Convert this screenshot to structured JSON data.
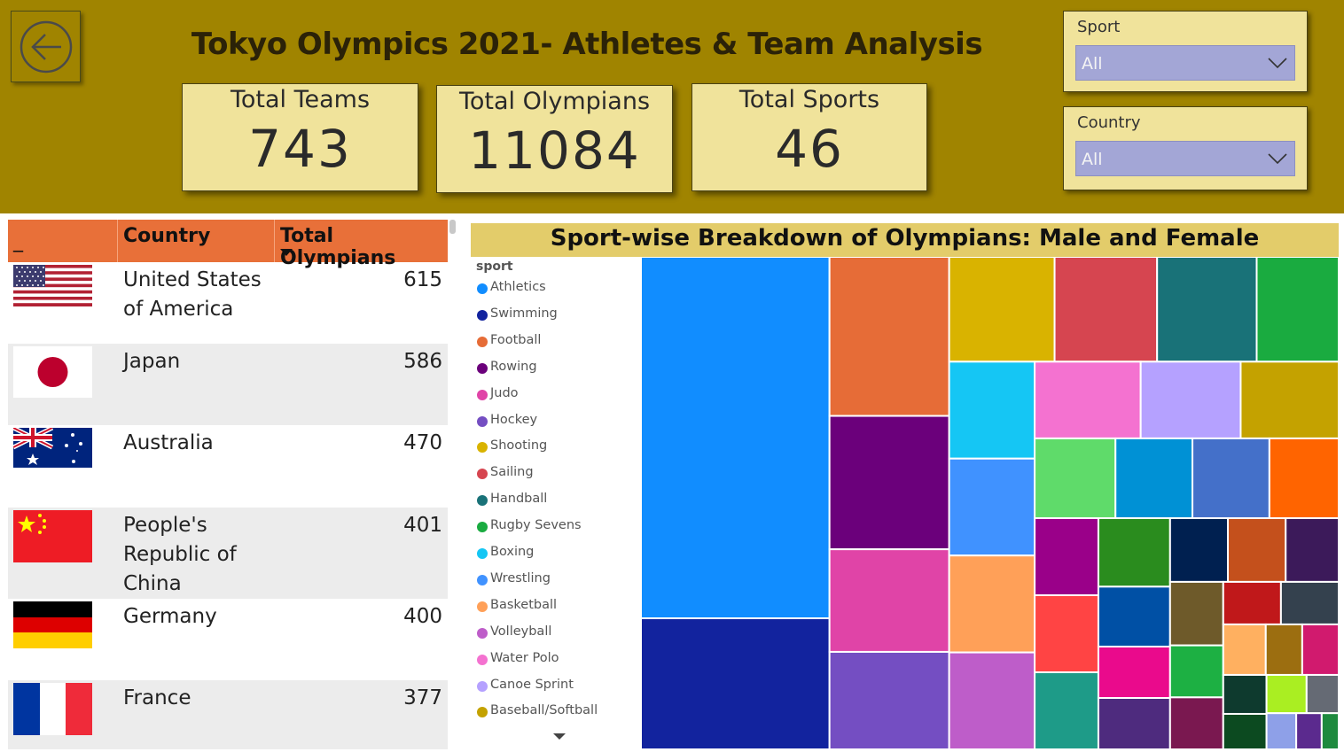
{
  "header": {
    "title": "Tokyo Olympics 2021- Athletes & Team Analysis",
    "back_icon": "back-arrow-icon",
    "background_color": "#a08400"
  },
  "kpis": [
    {
      "label": "Total Teams",
      "value": "743"
    },
    {
      "label": "Total Olympians",
      "value": "11084"
    },
    {
      "label": "Total Sports",
      "value": "46"
    }
  ],
  "slicers": [
    {
      "label": "Sport",
      "value": "All"
    },
    {
      "label": "Country",
      "value": "All"
    }
  ],
  "table": {
    "columns": [
      "_",
      "Country",
      "Total Olympians"
    ],
    "sort_indicator": "sort-descending-icon",
    "rows": [
      {
        "flag": "usa-flag-icon",
        "country": "United States of America",
        "total": "615"
      },
      {
        "flag": "japan-flag-icon",
        "country": "Japan",
        "total": "586"
      },
      {
        "flag": "australia-flag-icon",
        "country": "Australia",
        "total": "470"
      },
      {
        "flag": "china-flag-icon",
        "country": "People's Republic of China",
        "total": "401"
      },
      {
        "flag": "germany-flag-icon",
        "country": "Germany",
        "total": "400"
      },
      {
        "flag": "france-flag-icon",
        "country": "France",
        "total": "377"
      }
    ]
  },
  "chart": {
    "title": "Sport-wise Breakdown of Olympians: Male and Female",
    "legend_title": "sport",
    "legend": [
      {
        "name": "Athletics",
        "color": "#118dff"
      },
      {
        "name": "Swimming",
        "color": "#12239e"
      },
      {
        "name": "Football",
        "color": "#e66c37"
      },
      {
        "name": "Rowing",
        "color": "#6b007b"
      },
      {
        "name": "Judo",
        "color": "#e044a7"
      },
      {
        "name": "Hockey",
        "color": "#744ec2"
      },
      {
        "name": "Shooting",
        "color": "#d9b300"
      },
      {
        "name": "Sailing",
        "color": "#d64550"
      },
      {
        "name": "Handball",
        "color": "#197278"
      },
      {
        "name": "Rugby Sevens",
        "color": "#1aab40"
      },
      {
        "name": "Boxing",
        "color": "#15c6f4"
      },
      {
        "name": "Wrestling",
        "color": "#4092ff"
      },
      {
        "name": "Basketball",
        "color": "#ffa058"
      },
      {
        "name": "Volleyball",
        "color": "#be5dc9"
      },
      {
        "name": "Water Polo",
        "color": "#f472d0"
      },
      {
        "name": "Canoe Sprint",
        "color": "#b5a1ff"
      },
      {
        "name": "Baseball/Softball",
        "color": "#c4a200"
      }
    ]
  },
  "chart_data": {
    "type": "treemap",
    "title": "Sport-wise Breakdown of Olympians: Male and Female",
    "legend_title": "sport",
    "categories": [
      "Athletics",
      "Swimming",
      "Football",
      "Rowing",
      "Judo",
      "Hockey",
      "Shooting",
      "Sailing",
      "Handball",
      "Rugby Sevens",
      "Boxing",
      "Wrestling",
      "Basketball",
      "Volleyball",
      "Water Polo",
      "Canoe Sprint",
      "Baseball/Softball"
    ],
    "values": [
      2220,
      805,
      620,
      520,
      400,
      380,
      360,
      350,
      340,
      280,
      270,
      270,
      270,
      270,
      265,
      250,
      245
    ],
    "other_sport_values": [
      210,
      200,
      200,
      180,
      160,
      160,
      160,
      160,
      140,
      120,
      120,
      120,
      120,
      110,
      110,
      90,
      90,
      80,
      80,
      70,
      60,
      60,
      55,
      50,
      50,
      40,
      35,
      30,
      20
    ],
    "other_sport_colors": [
      "#5fdb6a",
      "#0091d5",
      "#4470c9",
      "#ff6400",
      "#9a0089",
      "#ff4444",
      "#1e9b88",
      "#2a8c1e",
      "#0050a5",
      "#ea0a8c",
      "#4e2b7e",
      "#002050",
      "#c4501c",
      "#3c1a5a",
      "#6e5a2a",
      "#1db043",
      "#7a1850",
      "#c0181a",
      "#34414e",
      "#ffb060",
      "#9c6e10",
      "#d11a6e",
      "#0e3a2e",
      "#0c4a20",
      "#aaee22",
      "#656a74",
      "#8ea0e8",
      "#5b2a8e",
      "#1e8a3e"
    ]
  }
}
